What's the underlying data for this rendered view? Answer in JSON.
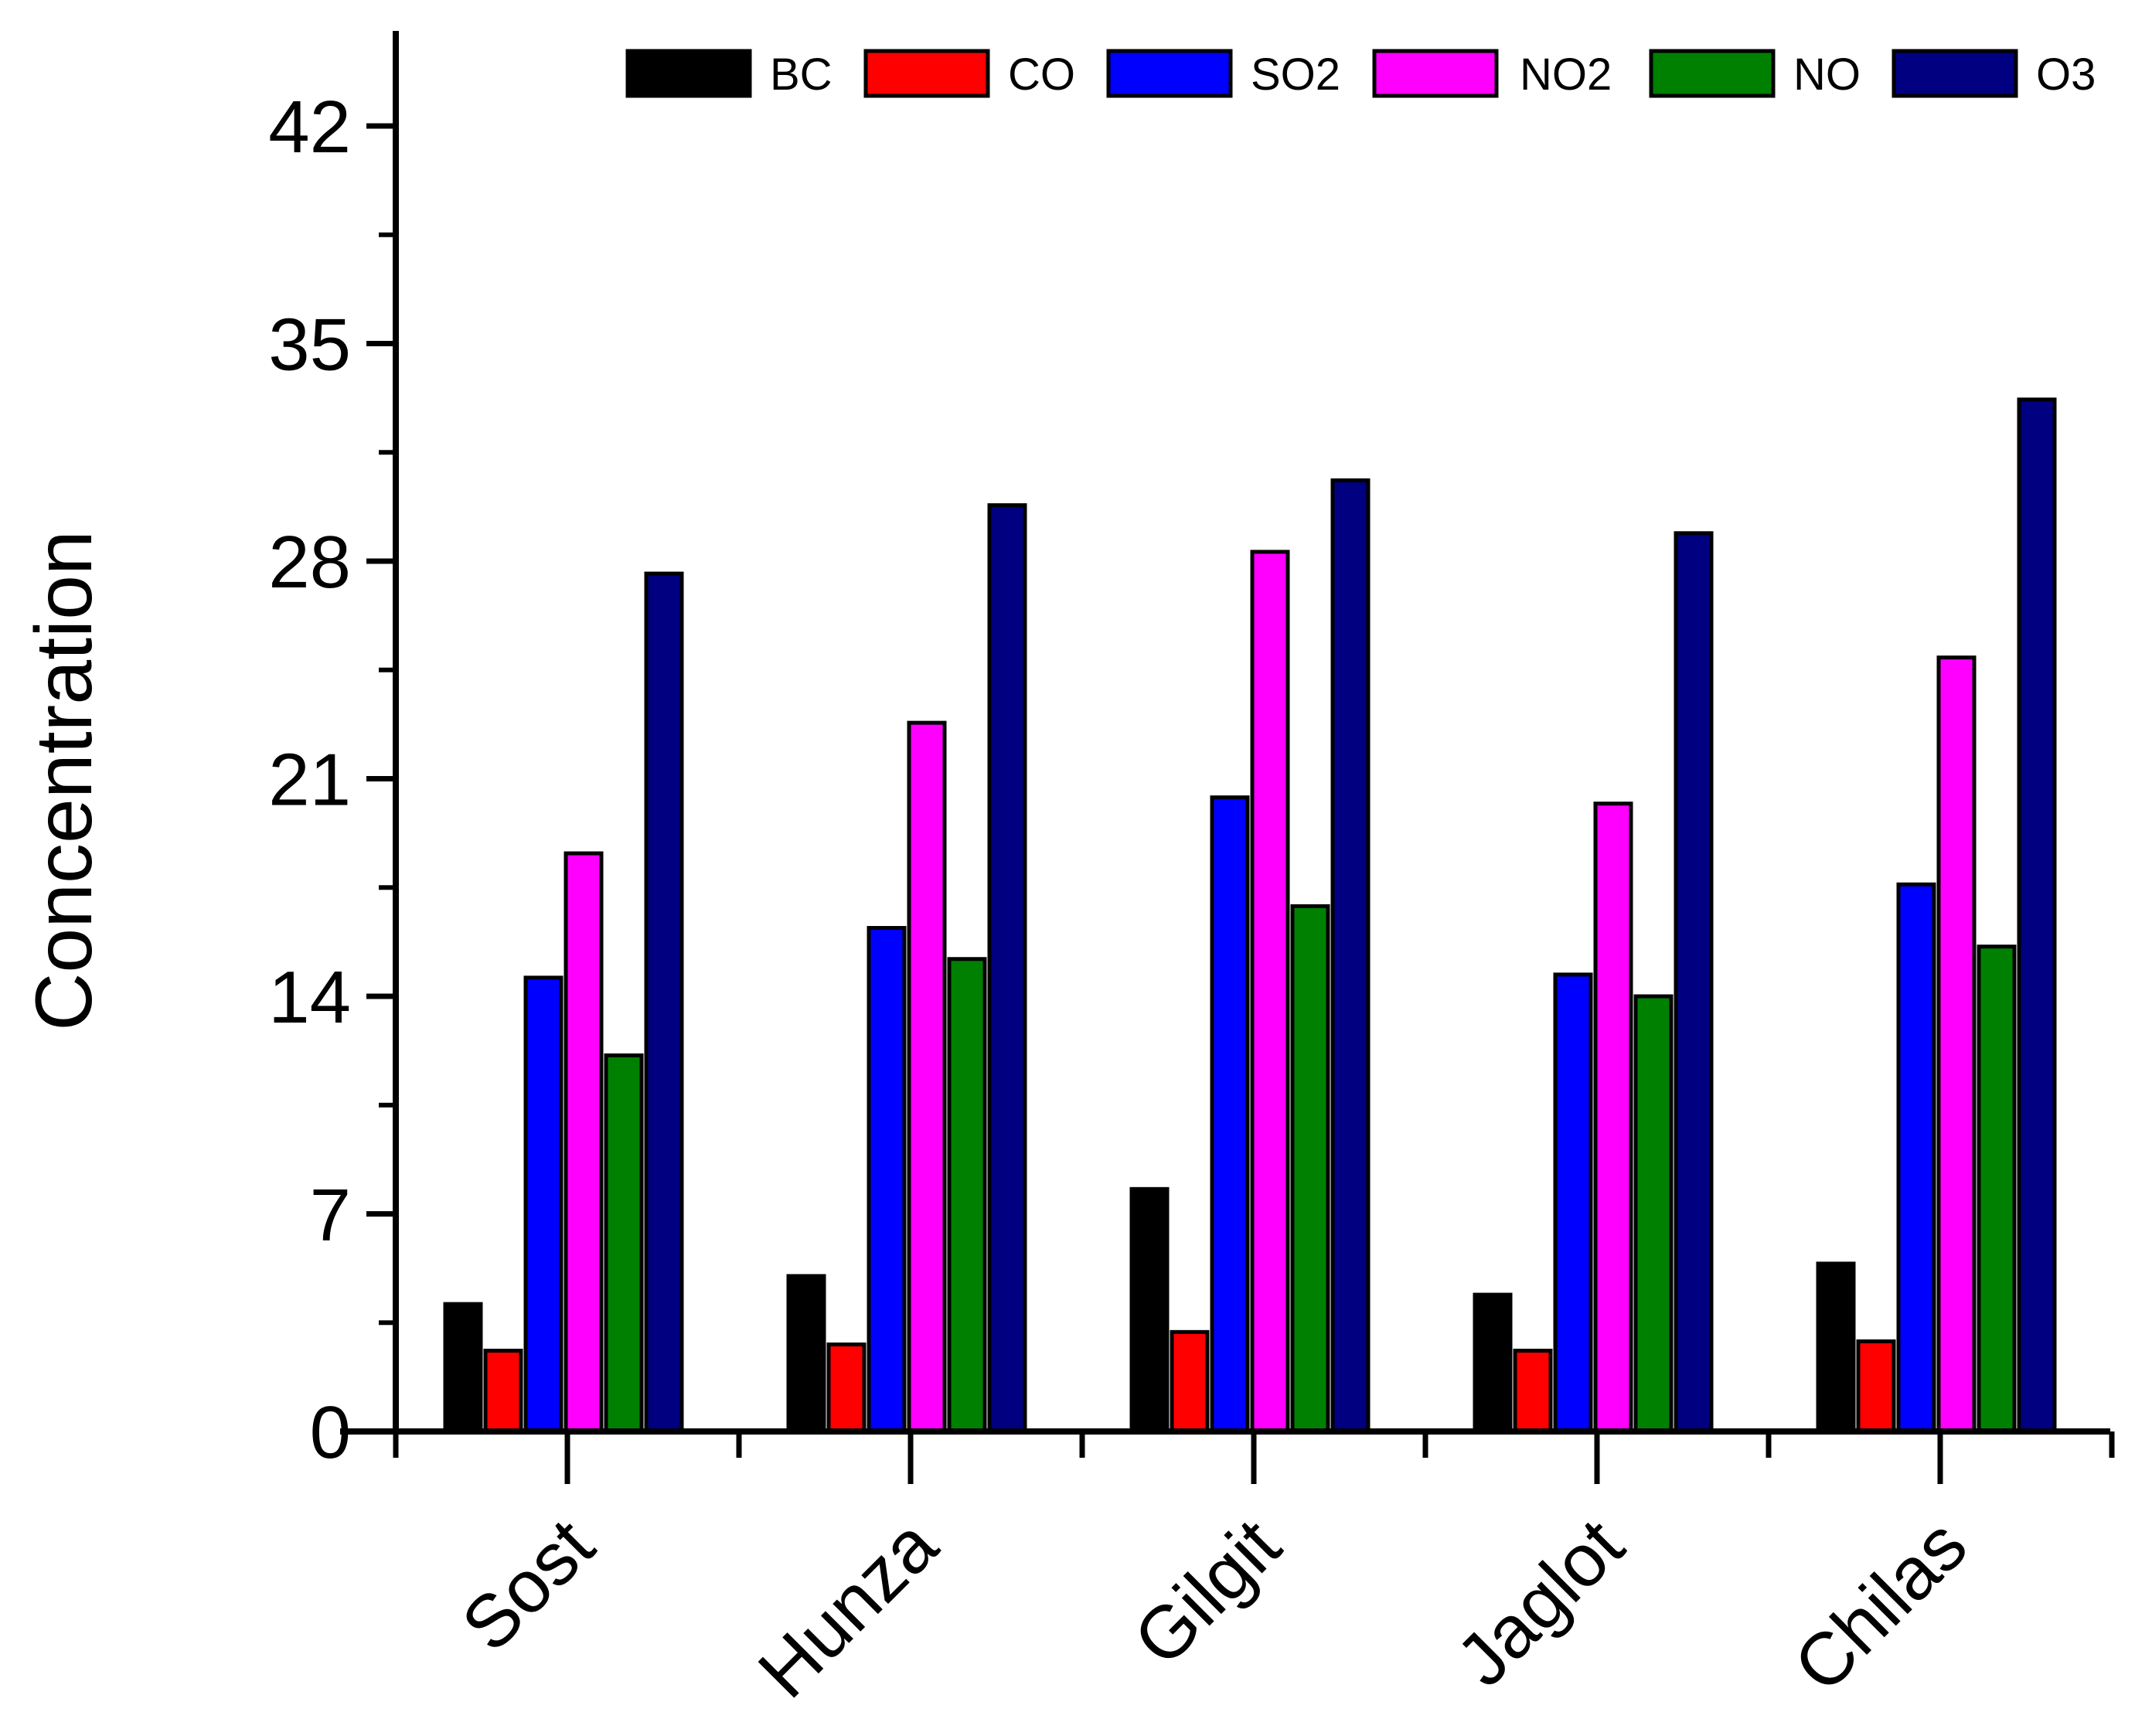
{
  "chart_data": {
    "type": "bar",
    "title": "",
    "xlabel": "",
    "ylabel": "Concentration",
    "ylim": [
      0,
      45
    ],
    "yticks": [
      0,
      7,
      14,
      21,
      28,
      35,
      42
    ],
    "yticks_minor": [
      3.5,
      10.5,
      17.5,
      24.5,
      31.5,
      38.5
    ],
    "grid": false,
    "legend_position": "top",
    "categories": [
      "Sost",
      "Hunza",
      "Gilgit",
      "Jaglot",
      "Chilas"
    ],
    "series": [
      {
        "name": "BC",
        "color": "#000000",
        "values": [
          4.1,
          5.0,
          7.8,
          4.4,
          5.4
        ]
      },
      {
        "name": "CO",
        "color": "#ff0000",
        "values": [
          2.6,
          2.8,
          3.2,
          2.6,
          2.9
        ]
      },
      {
        "name": "SO2",
        "color": "#0000ff",
        "values": [
          14.6,
          16.2,
          20.4,
          14.7,
          17.6
        ]
      },
      {
        "name": "NO2",
        "color": "#ff00ff",
        "values": [
          18.6,
          22.8,
          28.3,
          20.2,
          24.9
        ]
      },
      {
        "name": "NO",
        "color": "#008000",
        "values": [
          12.1,
          15.2,
          16.9,
          14.0,
          15.6
        ]
      },
      {
        "name": "O3",
        "color": "#000080",
        "values": [
          27.6,
          29.8,
          30.6,
          28.9,
          33.2
        ]
      }
    ]
  }
}
